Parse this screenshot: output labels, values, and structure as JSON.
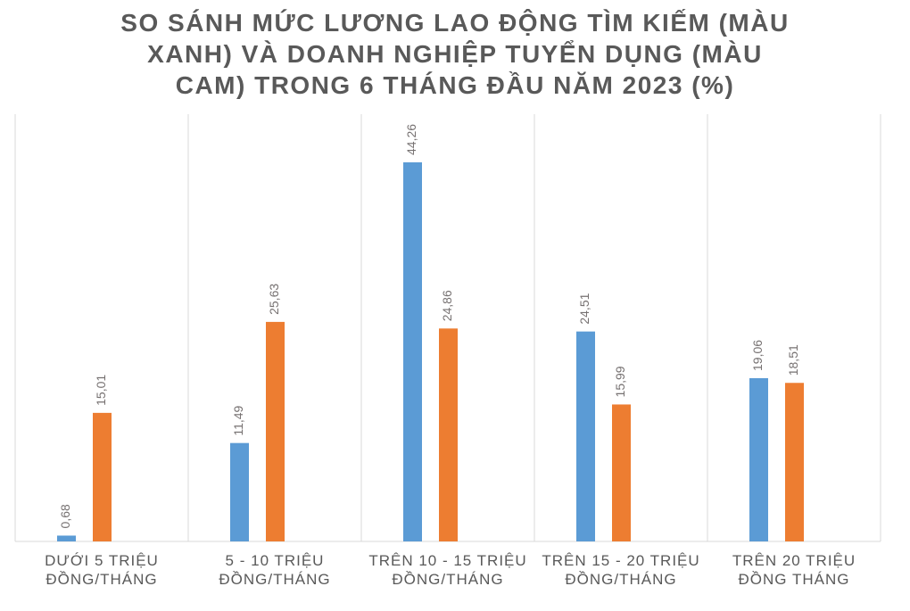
{
  "chart_data": {
    "type": "bar",
    "title_lines": [
      "SO SÁNH MỨC LƯƠNG LAO ĐỘNG TÌM KIẾM (MÀU",
      "XANH) VÀ DOANH NGHIỆP TUYỂN DỤNG (MÀU",
      "CAM) TRONG 6 THÁNG ĐẦU NĂM 2023 (%)"
    ],
    "categories": [
      [
        "DƯỚI 5 TRIỆU",
        "ĐỒNG/THÁNG"
      ],
      [
        "5 - 10 TRIỆU",
        "ĐỒNG/THÁNG"
      ],
      [
        "TRÊN 10 - 15 TRIỆU",
        "ĐỒNG/THÁNG"
      ],
      [
        "TRÊN 15 - 20 TRIỆU",
        "ĐỒNG/THÁNG"
      ],
      [
        "TRÊN 20 TRIỆU",
        "ĐỒNG THÁNG"
      ]
    ],
    "series": [
      {
        "color": "#5B9BD5",
        "values": [
          0.68,
          11.49,
          44.26,
          24.51,
          19.06
        ],
        "labels": [
          "0,68",
          "11,49",
          "44,26",
          "24,51",
          "19,06"
        ]
      },
      {
        "color": "#ED7D31",
        "values": [
          15.01,
          25.63,
          24.86,
          15.99,
          18.51
        ],
        "labels": [
          "15,01",
          "25,63",
          "24,86",
          "15,99",
          "18,51"
        ]
      }
    ],
    "ylim": [
      0,
      45
    ],
    "grid": "vertical category separators",
    "legend": "none"
  }
}
